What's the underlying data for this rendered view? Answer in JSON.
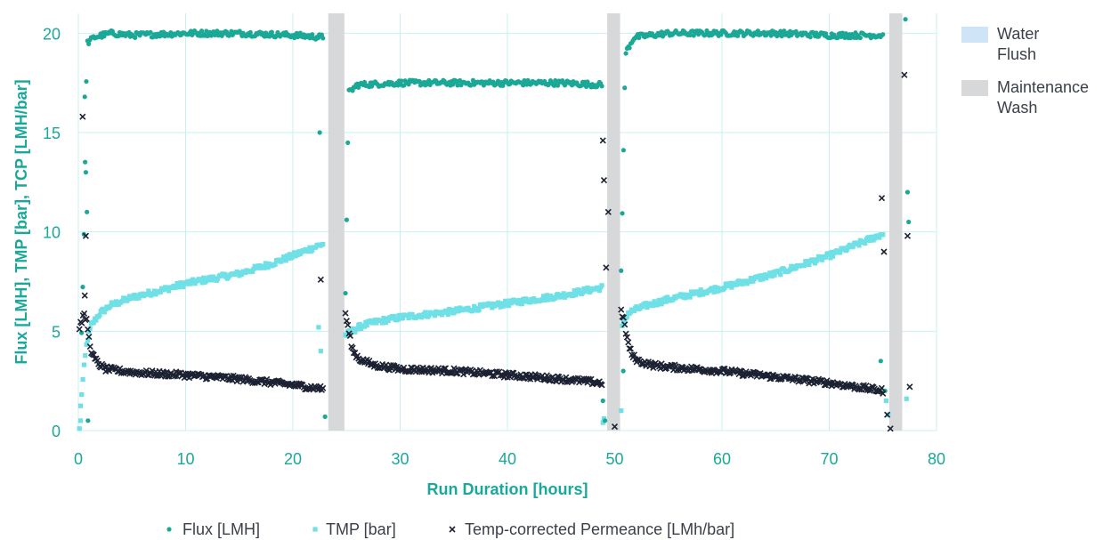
{
  "chart_data": {
    "type": "scatter",
    "xlabel": "Run Duration [hours]",
    "ylabel": "Flux [LMH], TMP [bar], TCP [LMH/bar]",
    "xlim": [
      0,
      80
    ],
    "ylim": [
      0,
      21
    ],
    "xticks": [
      "0",
      "10",
      "20",
      "30",
      "40",
      "50",
      "60",
      "70",
      "80"
    ],
    "yticks": [
      "0",
      "5",
      "10",
      "15",
      "20"
    ],
    "grid": true,
    "legend_bottom": "bottom",
    "legend_right": "right",
    "bands": [
      {
        "name": "Maintenance Wash",
        "x_start": 23.3,
        "x_end": 24.8,
        "color": "#d6d8da"
      },
      {
        "name": "Maintenance Wash",
        "x_start": 49.3,
        "x_end": 50.5,
        "color": "#d6d8da"
      },
      {
        "name": "Maintenance Wash",
        "x_start": 75.6,
        "x_end": 76.8,
        "color": "#d6d8da"
      }
    ],
    "band_legend": [
      {
        "name": "Water Flush",
        "lines": [
          "Water",
          "Flush"
        ],
        "color": "#cfe4f7"
      },
      {
        "name": "Maintenance Wash",
        "lines": [
          "Maintenance",
          "Wash"
        ],
        "color": "#d6d8da"
      }
    ],
    "series": [
      {
        "name": "Flux [LMH]",
        "legend_label": "Flux [LMH]",
        "marker": "circle",
        "color": "#1ba896",
        "segments": [
          {
            "x": [
              0.3,
              0.5,
              0.8,
              1.5,
              3,
              5,
              10,
              15,
              20,
              22.8
            ],
            "y": [
              5.0,
              9.0,
              19.5,
              19.8,
              20.0,
              19.9,
              20.0,
              20.0,
              19.9,
              19.8
            ]
          },
          {
            "x": [
              24.9,
              25.2,
              26,
              30,
              35,
              40,
              45,
              48.8
            ],
            "y": [
              7.0,
              17.0,
              17.4,
              17.5,
              17.5,
              17.5,
              17.5,
              17.4
            ]
          },
          {
            "x": [
              50.6,
              51.0,
              51.8,
              55,
              60,
              65,
              70,
              75.0
            ],
            "y": [
              8.0,
              19.0,
              19.8,
              20.0,
              20.0,
              20.0,
              19.9,
              19.9
            ]
          }
        ],
        "outliers": {
          "x": [
            0.6,
            0.7,
            0.8,
            0.9,
            22.5,
            23.0,
            48.9,
            49.1,
            50.8,
            74.8,
            75.2,
            77.1,
            77.3,
            77.4
          ],
          "y": [
            16.8,
            13.0,
            11.0,
            0.5,
            15.0,
            0.7,
            1.5,
            0.5,
            3.0,
            3.5,
            2.0,
            20.7,
            12.0,
            10.5
          ]
        }
      },
      {
        "name": "TMP [bar]",
        "legend_label": "TMP [bar]",
        "marker": "square",
        "color": "#6fe0e6",
        "segments": [
          {
            "x": [
              0.2,
              0.5,
              0.8,
              1.2,
              2,
              3,
              5,
              8,
              10,
              12,
              15,
              18,
              20,
              22.8
            ],
            "y": [
              1.2,
              3.0,
              4.5,
              5.3,
              5.9,
              6.3,
              6.7,
              7.1,
              7.4,
              7.6,
              7.9,
              8.4,
              8.8,
              9.4
            ]
          },
          {
            "x": [
              24.9,
              25.5,
              26.5,
              28,
              30,
              35,
              40,
              45,
              48.8
            ],
            "y": [
              4.8,
              5.0,
              5.3,
              5.5,
              5.7,
              6.0,
              6.4,
              6.8,
              7.2
            ]
          },
          {
            "x": [
              50.7,
              51.2,
              52,
              53,
              55,
              60,
              65,
              70,
              75.0
            ],
            "y": [
              5.2,
              5.9,
              6.1,
              6.3,
              6.6,
              7.2,
              7.9,
              8.8,
              9.9
            ]
          }
        ],
        "outliers": {
          "x": [
            0.1,
            0.2,
            22.4,
            22.6,
            48.9,
            49.0,
            50.6,
            75.3,
            75.5,
            77.2
          ],
          "y": [
            0.1,
            0.5,
            5.2,
            4.0,
            0.4,
            0.6,
            1.0,
            1.5,
            0.8,
            1.6
          ]
        }
      },
      {
        "name": "Temp-corrected Permeance [LMh/bar]",
        "legend_label": "Temp-corrected Permeance [LMh/bar]",
        "marker": "x",
        "color": "#1c2233",
        "segments": [
          {
            "x": [
              0.1,
              0.5,
              0.8,
              1.0,
              1.3,
              1.8,
              2.5,
              4,
              6,
              10,
              15,
              20,
              22.8
            ],
            "y": [
              5.2,
              5.8,
              5.5,
              4.6,
              3.8,
              3.4,
              3.1,
              3.0,
              2.9,
              2.8,
              2.6,
              2.3,
              2.1
            ]
          },
          {
            "x": [
              24.9,
              25.2,
              25.6,
              26.2,
              27.5,
              30,
              35,
              40,
              45,
              48.8
            ],
            "y": [
              5.9,
              5.0,
              4.0,
              3.6,
              3.3,
              3.1,
              3.0,
              2.8,
              2.6,
              2.4
            ]
          },
          {
            "x": [
              50.6,
              50.9,
              51.2,
              51.6,
              52.2,
              53.5,
              55,
              60,
              65,
              70,
              75.0
            ],
            "y": [
              6.0,
              5.4,
              4.5,
              3.8,
              3.5,
              3.3,
              3.2,
              3.0,
              2.7,
              2.4,
              2.0
            ]
          }
        ],
        "outliers": {
          "x": [
            0.4,
            0.6,
            0.7,
            22.6,
            48.9,
            49.0,
            49.2,
            49.4,
            50.0,
            74.9,
            75.1,
            75.4,
            75.7,
            77.0,
            77.3,
            77.5
          ],
          "y": [
            15.8,
            6.8,
            9.8,
            7.6,
            14.6,
            12.6,
            8.2,
            11.0,
            0.2,
            11.7,
            9.0,
            0.8,
            0.1,
            17.9,
            9.8,
            2.2
          ]
        }
      }
    ]
  }
}
